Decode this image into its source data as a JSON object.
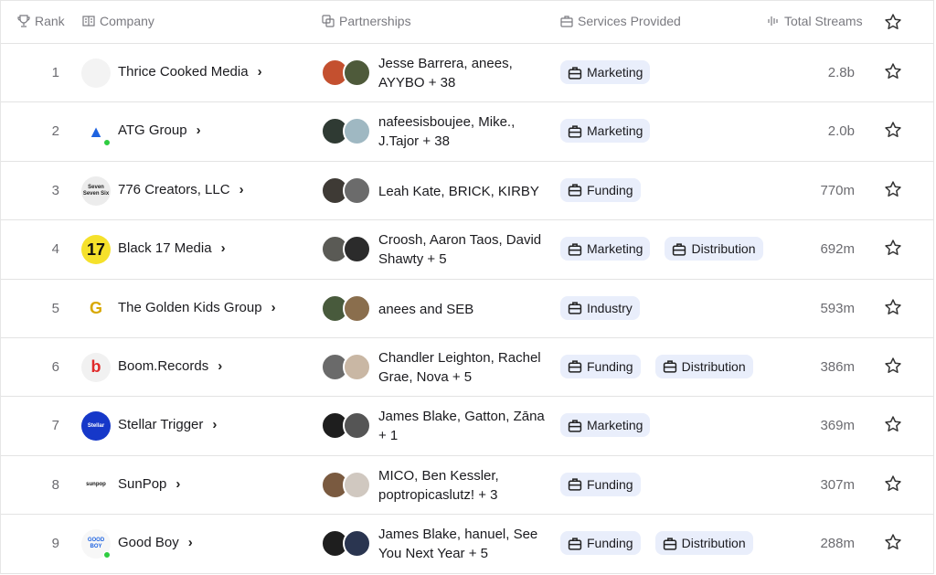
{
  "header": {
    "rank": "Rank",
    "company": "Company",
    "partnerships": "Partnerships",
    "services": "Services Provided",
    "streams": "Total Streams"
  },
  "rows": [
    {
      "rank": "1",
      "company": "Thrice Cooked Media",
      "partners": "Jesse Barrera, anees, AYYBO + 38",
      "services": [
        "Marketing"
      ],
      "streams": "2.8b",
      "logo": {
        "bg": "#f3f3f3",
        "fg": "#999",
        "text": "",
        "dot": false
      },
      "avatars": [
        "#c4502f",
        "#4e5a3a"
      ]
    },
    {
      "rank": "2",
      "company": "ATG Group",
      "partners": "nafeesisboujee, Mike., J.Tajor + 38",
      "services": [
        "Marketing"
      ],
      "streams": "2.0b",
      "logo": {
        "bg": "#ffffff",
        "fg": "#1e63e0",
        "text": "▲",
        "dot": true
      },
      "avatars": [
        "#2f3a33",
        "#9fb8c2"
      ]
    },
    {
      "rank": "3",
      "company": "776 Creators, LLC",
      "partners": "Leah Kate, BRICK, KIRBY",
      "services": [
        "Funding"
      ],
      "streams": "770m",
      "logo": {
        "bg": "#ececec",
        "fg": "#222",
        "text": "Seven Seven Six",
        "dot": false
      },
      "avatars": [
        "#3e3a35",
        "#6b6b6b"
      ]
    },
    {
      "rank": "4",
      "company": "Black 17 Media",
      "partners": "Croosh, Aaron Taos, David Shawty + 5",
      "services": [
        "Marketing",
        "Distribution"
      ],
      "streams": "692m",
      "logo": {
        "bg": "#f5e12b",
        "fg": "#111",
        "text": "17",
        "dot": false
      },
      "avatars": [
        "#5a5a55",
        "#2b2b2b"
      ]
    },
    {
      "rank": "5",
      "company": "The Golden Kids Group",
      "partners": "anees and SEB",
      "services": [
        "Industry"
      ],
      "streams": "593m",
      "logo": {
        "bg": "#ffffff",
        "fg": "#d8a800",
        "text": "G",
        "dot": false
      },
      "avatars": [
        "#485a3c",
        "#8a6e4d"
      ]
    },
    {
      "rank": "6",
      "company": "Boom.Records",
      "partners": "Chandler Leighton, Rachel Grae, Nova + 5",
      "services": [
        "Funding",
        "Distribution"
      ],
      "streams": "386m",
      "logo": {
        "bg": "#f1f1f1",
        "fg": "#e02a2a",
        "text": "b",
        "dot": false
      },
      "avatars": [
        "#6a6a6a",
        "#c9b7a4"
      ]
    },
    {
      "rank": "7",
      "company": "Stellar Trigger",
      "partners": "James Blake, Gatton, Zāna + 1",
      "services": [
        "Marketing"
      ],
      "streams": "369m",
      "logo": {
        "bg": "#1638c9",
        "fg": "#fff",
        "text": "Stellar",
        "dot": false
      },
      "avatars": [
        "#1e1e1e",
        "#555"
      ]
    },
    {
      "rank": "8",
      "company": "SunPop",
      "partners": "MICO, Ben Kessler, poptropicaslutz! + 3",
      "services": [
        "Funding"
      ],
      "streams": "307m",
      "logo": {
        "bg": "#ffffff",
        "fg": "#111",
        "text": "sunpop",
        "dot": false
      },
      "avatars": [
        "#7a5a40",
        "#d0c8c0"
      ]
    },
    {
      "rank": "9",
      "company": "Good Boy",
      "partners": "James Blake, hanuel, See You Next Year + 5",
      "services": [
        "Funding",
        "Distribution"
      ],
      "streams": "288m",
      "logo": {
        "bg": "#f7f7f7",
        "fg": "#1e63e0",
        "text": "GOOD BOY",
        "dot": true
      },
      "avatars": [
        "#1e1e1e",
        "#2a3550"
      ]
    }
  ]
}
